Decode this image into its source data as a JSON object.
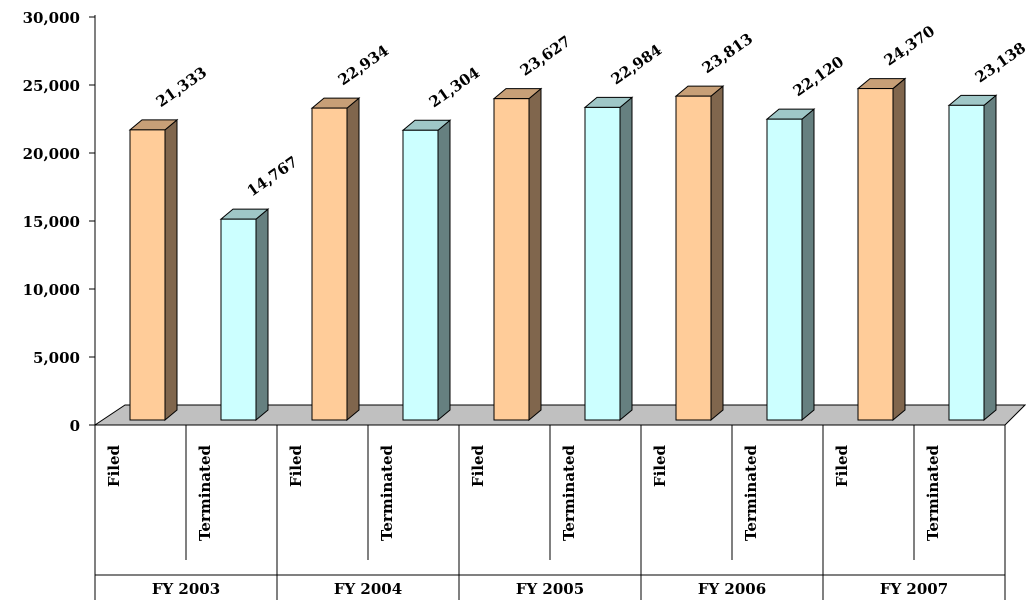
{
  "chart_data": {
    "type": "bar3d",
    "categories": [
      "FY 2003",
      "FY 2004",
      "FY 2005",
      "FY 2006",
      "FY 2007"
    ],
    "series": [
      {
        "name": "Filed",
        "color": "#ffcc99",
        "values": [
          21333,
          22934,
          23627,
          23813,
          24370
        ],
        "value_labels": [
          "21,333",
          "22,934",
          "23,627",
          "23,813",
          "24,370"
        ]
      },
      {
        "name": "Terminated",
        "color": "#ccffff",
        "values": [
          14767,
          21304,
          22984,
          22120,
          23138
        ],
        "value_labels": [
          "14,767",
          "21,304",
          "22,984",
          "22,120",
          "23,138"
        ]
      }
    ],
    "ylim": [
      0,
      30000
    ],
    "yticks": [
      0,
      {
        "value": 5000,
        "label": "5,000"
      },
      {
        "value": 10000,
        "label": "10,000"
      },
      {
        "value": 15000,
        "label": "15,000"
      },
      {
        "value": 20000,
        "label": "20,000"
      },
      {
        "value": 25000,
        "label": "25,000"
      },
      {
        "value": 30000,
        "label": "30,000"
      }
    ]
  }
}
